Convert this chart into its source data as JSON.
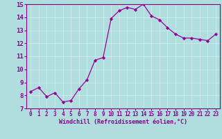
{
  "x": [
    0,
    1,
    2,
    3,
    4,
    5,
    6,
    7,
    8,
    9,
    10,
    11,
    12,
    13,
    14,
    15,
    16,
    17,
    18,
    19,
    20,
    21,
    22,
    23
  ],
  "y": [
    8.3,
    8.6,
    7.9,
    8.2,
    7.5,
    7.6,
    8.5,
    9.2,
    10.7,
    10.9,
    13.9,
    14.5,
    14.75,
    14.6,
    15.0,
    14.1,
    13.8,
    13.2,
    12.7,
    12.4,
    12.4,
    12.3,
    12.2,
    12.7
  ],
  "line_color": "#990099",
  "marker": "D",
  "marker_size": 2.2,
  "bg_color": "#b0dede",
  "grid_color": "#d0eaea",
  "xlabel": "Windchill (Refroidissement éolien,°C)",
  "ylabel": "",
  "ylim": [
    7,
    15
  ],
  "xlim": [
    -0.5,
    23.5
  ],
  "yticks": [
    7,
    8,
    9,
    10,
    11,
    12,
    13,
    14,
    15
  ],
  "xticks": [
    0,
    1,
    2,
    3,
    4,
    5,
    6,
    7,
    8,
    9,
    10,
    11,
    12,
    13,
    14,
    15,
    16,
    17,
    18,
    19,
    20,
    21,
    22,
    23
  ],
  "tick_label_color": "#880088",
  "axis_color": "#880088",
  "xlabel_color": "#880088",
  "xlabel_fontsize": 6.0,
  "tick_fontsize": 5.5,
  "ytick_fontsize": 6.5
}
